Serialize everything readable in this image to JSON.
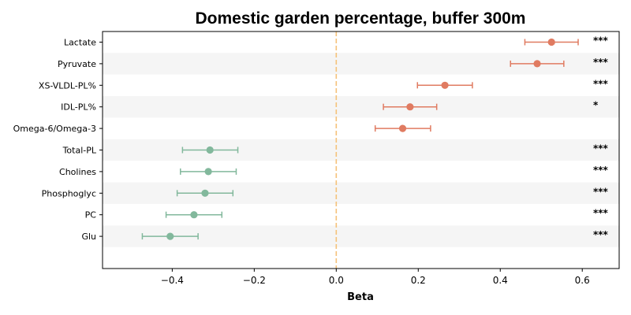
{
  "chart_data": {
    "type": "forest",
    "title": "Domestic garden percentage, buffer 300m",
    "xlabel": "Beta",
    "ylabel": "",
    "xlim": [
      -0.57,
      0.69
    ],
    "xticks": [
      -0.4,
      -0.2,
      0.0,
      0.2,
      0.4,
      0.6
    ],
    "xtick_labels": [
      "−0.4",
      "−0.2",
      "0.0",
      "0.2",
      "0.4",
      "0.6"
    ],
    "reference_line": 0,
    "alternating_row_shading": true,
    "colors": {
      "positive": "#E07B61",
      "negative": "#82B89C",
      "reference": "#F5C27A",
      "row_shade": "#F5F5F5"
    },
    "rows": [
      {
        "label": "Lactate",
        "beta": 0.525,
        "ci_low": 0.46,
        "ci_high": 0.59,
        "sig": "***"
      },
      {
        "label": "Pyruvate",
        "beta": 0.49,
        "ci_low": 0.425,
        "ci_high": 0.555,
        "sig": "***"
      },
      {
        "label": "XS-VLDL-PL%",
        "beta": 0.265,
        "ci_low": 0.198,
        "ci_high": 0.332,
        "sig": "***"
      },
      {
        "label": "IDL-PL%",
        "beta": 0.18,
        "ci_low": 0.115,
        "ci_high": 0.245,
        "sig": "*"
      },
      {
        "label": "Omega-6/Omega-3",
        "beta": 0.162,
        "ci_low": 0.095,
        "ci_high": 0.23,
        "sig": ""
      },
      {
        "label": "Total-PL",
        "beta": -0.308,
        "ci_low": -0.375,
        "ci_high": -0.24,
        "sig": "***"
      },
      {
        "label": "Cholines",
        "beta": -0.312,
        "ci_low": -0.38,
        "ci_high": -0.244,
        "sig": "***"
      },
      {
        "label": "Phosphoglyc",
        "beta": -0.32,
        "ci_low": -0.388,
        "ci_high": -0.252,
        "sig": "***"
      },
      {
        "label": "PC",
        "beta": -0.347,
        "ci_low": -0.415,
        "ci_high": -0.279,
        "sig": "***"
      },
      {
        "label": "Glu",
        "beta": -0.405,
        "ci_low": -0.473,
        "ci_high": -0.337,
        "sig": "***"
      }
    ]
  }
}
